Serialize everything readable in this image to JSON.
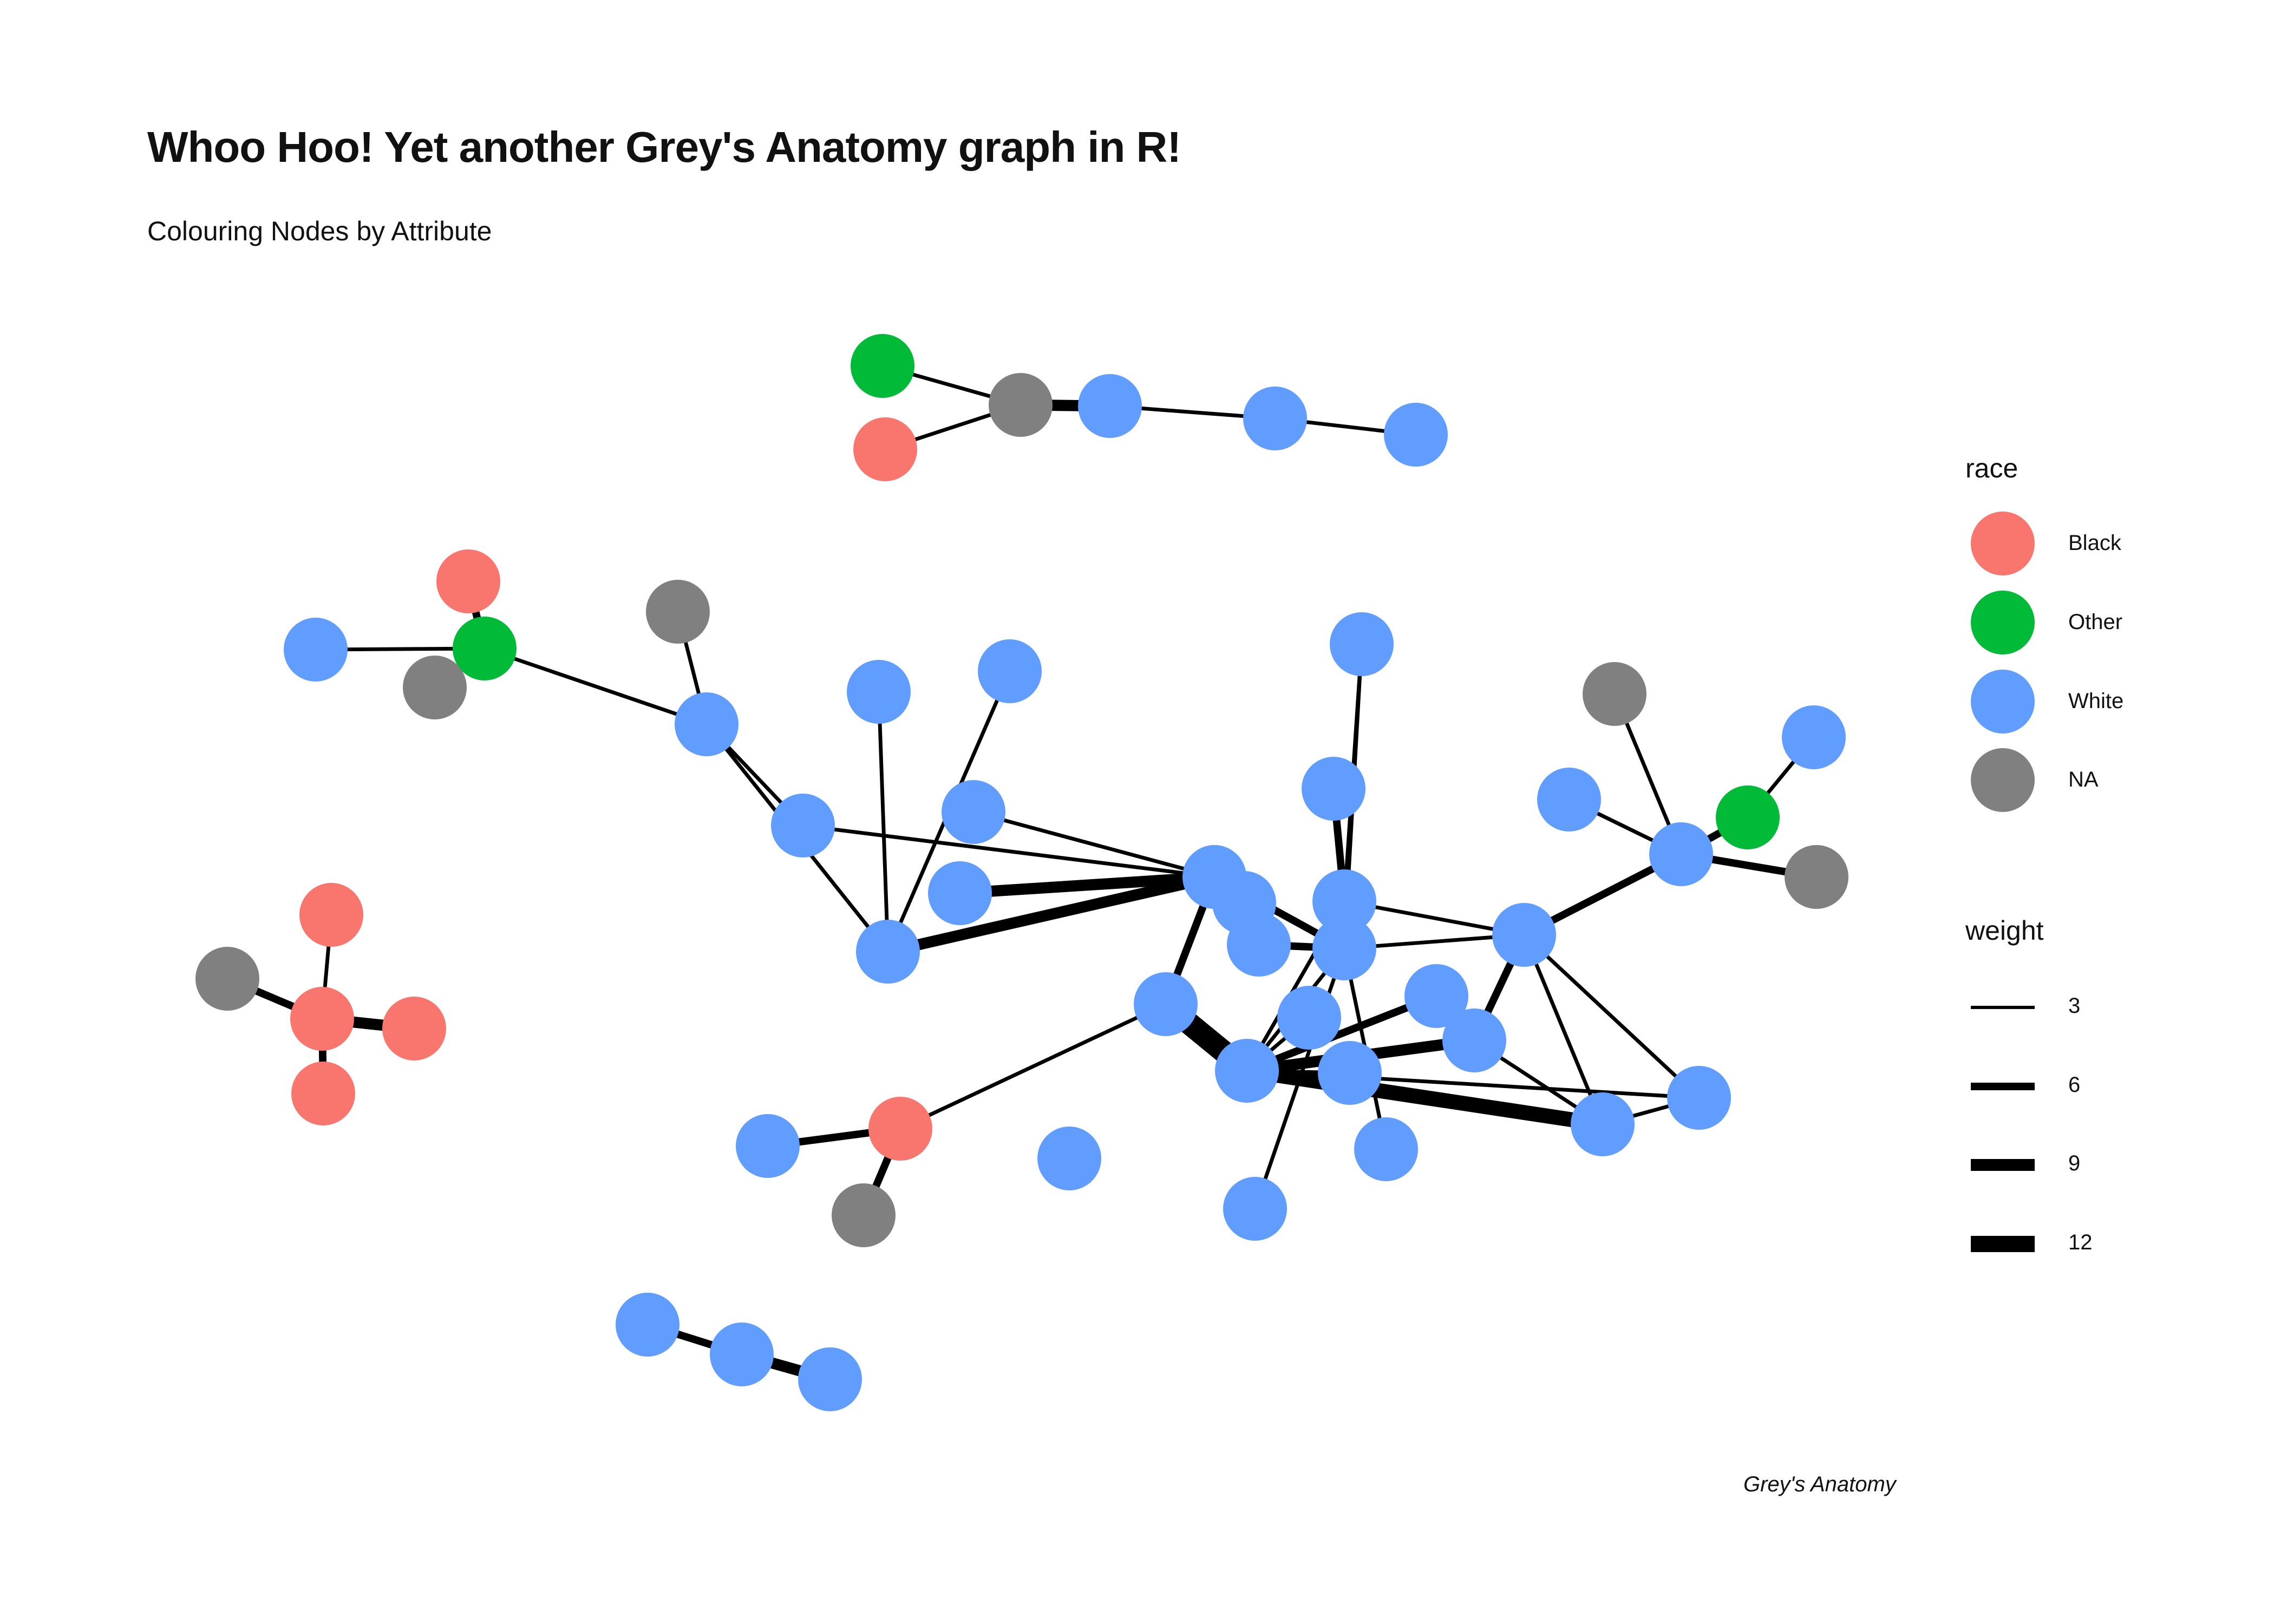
{
  "title": "Whoo Hoo! Yet another Grey's Anatomy graph in R!",
  "subtitle": "Colouring Nodes by Attribute",
  "caption": "Grey's Anatomy",
  "legend": {
    "race": {
      "title": "race",
      "items": [
        {
          "label": "Black",
          "color": "#F8766D"
        },
        {
          "label": "Other",
          "color": "#00BA38"
        },
        {
          "label": "White",
          "color": "#619CFF"
        },
        {
          "label": "NA",
          "color": "#808080"
        }
      ]
    },
    "weight": {
      "title": "weight",
      "items": [
        {
          "label": "3",
          "value": 3
        },
        {
          "label": "6",
          "value": 6
        },
        {
          "label": "9",
          "value": 9
        },
        {
          "label": "12",
          "value": 12
        }
      ]
    }
  }
}
